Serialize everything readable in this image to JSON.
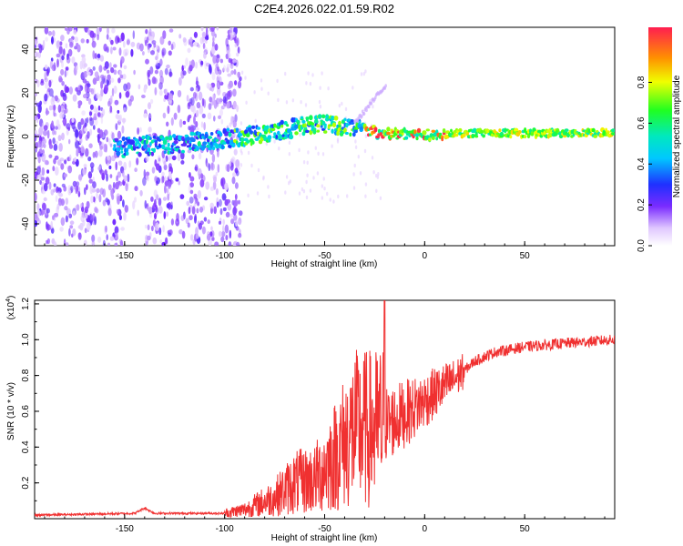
{
  "title": "C2E4.2026.022.01.59.R02",
  "chart_data": [
    {
      "type": "heatmap",
      "name": "spectrogram",
      "xlabel": "Height of straight line (km)",
      "ylabel": "Frequency (Hz)",
      "xlim": [
        -195,
        95
      ],
      "ylim": [
        -50,
        50
      ],
      "x_ticks": [
        -150,
        -100,
        -50,
        0,
        50
      ],
      "y_ticks": [
        -40,
        -20,
        0,
        20,
        40
      ],
      "colorbar": {
        "label": "Normalized spectral amplitude",
        "range": [
          0,
          1
        ],
        "ticks": [
          0.0,
          0.2,
          0.4,
          0.6,
          0.8
        ],
        "tick_labels": [
          "0.0",
          "0.2",
          "0.4",
          "0.6",
          "0.8"
        ]
      },
      "description_regions": {
        "noise_band_x": [
          -195,
          -92
        ],
        "signal_track": [
          {
            "x": -150,
            "y": -5
          },
          {
            "x": -120,
            "y": -3
          },
          {
            "x": -90,
            "y": 0
          },
          {
            "x": -70,
            "y": 3
          },
          {
            "x": -60,
            "y": 5
          },
          {
            "x": -50,
            "y": 6
          },
          {
            "x": -35,
            "y": 4
          },
          {
            "x": -20,
            "y": 1
          },
          {
            "x": 0,
            "y": 1
          },
          {
            "x": 30,
            "y": 1.5
          },
          {
            "x": 60,
            "y": 1.5
          },
          {
            "x": 95,
            "y": 1.5
          }
        ]
      }
    },
    {
      "type": "line",
      "name": "snr",
      "xlabel": "Height of straight line (km)",
      "ylabel": "SNR (10 * v/v)",
      "y_multiplier_label": "(x10",
      "y_multiplier_exp": "4",
      "y_multiplier_close": ")",
      "xlim": [
        -195,
        95
      ],
      "ylim": [
        0,
        1.22
      ],
      "x_ticks": [
        -150,
        -100,
        -50,
        0,
        50
      ],
      "y_ticks": [
        0.2,
        0.4,
        0.6,
        0.8,
        1.0,
        1.2
      ],
      "y_tick_labels": [
        "0.2",
        "0.4",
        "0.6",
        "0.8",
        "1.0",
        "1.2"
      ],
      "series": [
        {
          "name": "SNR",
          "color": "#f03030",
          "envelope": [
            {
              "x": -195,
              "y": 0.02
            },
            {
              "x": -145,
              "y": 0.03
            },
            {
              "x": -140,
              "y": 0.06
            },
            {
              "x": -135,
              "y": 0.03
            },
            {
              "x": -100,
              "y": 0.03
            },
            {
              "x": -90,
              "y": 0.05
            },
            {
              "x": -75,
              "y": 0.12
            },
            {
              "x": -65,
              "y": 0.2
            },
            {
              "x": -55,
              "y": 0.22
            },
            {
              "x": -45,
              "y": 0.35
            },
            {
              "x": -35,
              "y": 0.5
            },
            {
              "x": -25,
              "y": 0.5
            },
            {
              "x": -15,
              "y": 0.55
            },
            {
              "x": -5,
              "y": 0.62
            },
            {
              "x": 5,
              "y": 0.7
            },
            {
              "x": 15,
              "y": 0.78
            },
            {
              "x": 25,
              "y": 0.88
            },
            {
              "x": 35,
              "y": 0.93
            },
            {
              "x": 50,
              "y": 0.96
            },
            {
              "x": 70,
              "y": 0.98
            },
            {
              "x": 95,
              "y": 1.0
            }
          ]
        }
      ]
    }
  ]
}
